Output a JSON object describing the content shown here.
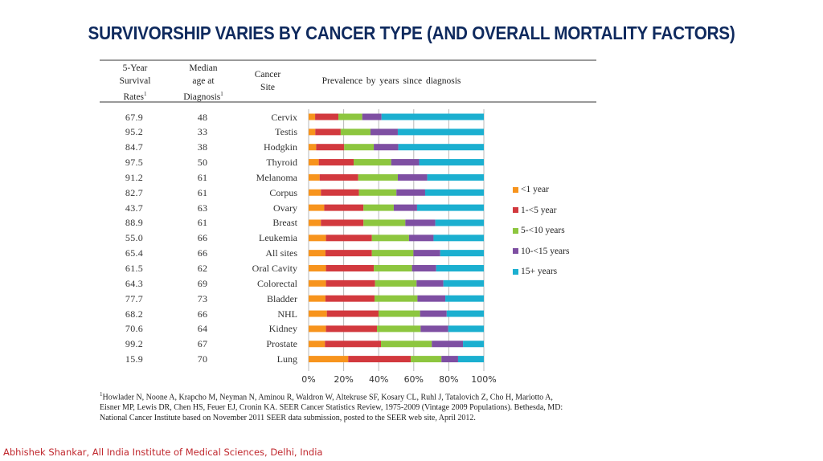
{
  "slide": {
    "title": "SURVIVORSHIP VARIES BY CANCER TYPE (AND OVERALL MORTALITY FACTORS)",
    "credit": "Abhishek Shankar, All India Institute of Medical Sciences, Delhi, India"
  },
  "table": {
    "headers": {
      "survival": [
        "5-Year",
        "Survival",
        "Rates"
      ],
      "survival_sup": "1",
      "median_age": [
        "Median",
        "age at",
        "Diagnosis"
      ],
      "median_age_sup": "1",
      "site": [
        "Cancer",
        "Site"
      ],
      "prevalence": "Prevalence by years since diagnosis"
    }
  },
  "chart_data": {
    "type": "bar",
    "orientation": "horizontal",
    "stacked": "percent",
    "title": "Prevalence by years since diagnosis",
    "categories": [
      "Cervix",
      "Testis",
      "Hodgkin",
      "Thyroid",
      "Melanoma",
      "Corpus",
      "Ovary",
      "Breast",
      "Leukemia",
      "All sites",
      "Oral Cavity",
      "Colorectal",
      "Bladder",
      "NHL",
      "Kidney",
      "Prostate",
      "Lung"
    ],
    "five_year_survival_rates": [
      "67.9",
      "95.2",
      "84.7",
      "97.5",
      "91.2",
      "82.7",
      "43.7",
      "88.9",
      "55.0",
      "65.4",
      "61.5",
      "64.3",
      "77.7",
      "68.2",
      "70.6",
      "99.2",
      "15.9"
    ],
    "median_age_at_diagnosis": [
      "48",
      "33",
      "38",
      "50",
      "61",
      "61",
      "63",
      "61",
      "66",
      "66",
      "62",
      "69",
      "73",
      "66",
      "64",
      "67",
      "70"
    ],
    "series": [
      {
        "name": "<1 year",
        "color": "#F7941D",
        "values": [
          3.7,
          3.8,
          4.3,
          5.8,
          6.3,
          7.0,
          8.9,
          7.0,
          9.9,
          9.6,
          9.9,
          9.9,
          9.6,
          10.4,
          9.9,
          9.3,
          22.6
        ]
      },
      {
        "name": "1-<5 year",
        "color": "#D2393E",
        "values": [
          13.3,
          14.5,
          16.0,
          19.9,
          22.0,
          21.7,
          22.4,
          24.3,
          26.2,
          26.5,
          27.3,
          28.0,
          28.0,
          29.5,
          29.1,
          32.0,
          35.7
        ]
      },
      {
        "name": "5-<10 years",
        "color": "#8DC63F",
        "values": [
          13.6,
          17.0,
          16.9,
          21.4,
          22.6,
          21.4,
          17.3,
          23.9,
          21.2,
          23.7,
          21.8,
          23.7,
          24.5,
          23.7,
          24.9,
          29.0,
          17.5
        ]
      },
      {
        "name": "10-<15 years",
        "color": "#7E4FA2",
        "values": [
          11.0,
          15.6,
          14.0,
          16.0,
          16.8,
          16.4,
          13.3,
          17.1,
          14.0,
          15.3,
          13.8,
          15.3,
          15.9,
          15.2,
          15.8,
          17.8,
          9.5
        ]
      },
      {
        "name": "15+ years",
        "color": "#1BAFD0",
        "values": [
          58.4,
          49.1,
          48.8,
          36.9,
          32.3,
          33.5,
          38.1,
          27.7,
          28.7,
          24.9,
          27.2,
          23.1,
          22.0,
          21.2,
          20.3,
          11.9,
          14.7
        ]
      }
    ],
    "xlabel": "",
    "ylabel": "",
    "xlim": [
      0,
      100
    ],
    "xticks": [
      "0%",
      "20%",
      "40%",
      "60%",
      "80%",
      "100%"
    ],
    "grid": true,
    "legend_position": "right"
  },
  "footnote": {
    "sup": "1",
    "lines": [
      "Howlader N, Noone A, Krapcho M, Neyman N, Aminou R, Waldron W, Altekruse SF, Kosary CL, Ruhl J, Tatalovich Z, Cho H, Mariotto A,",
      "Eisner MP, Lewis DR, Chen HS, Feuer EJ, Cronin KA. SEER Cancer Statistics Review, 1975-2009 (Vintage 2009 Populations). Bethesda, MD:",
      "National Cancer Institute based on November 2011 SEER data submission, posted to the SEER web site, April 2012."
    ]
  }
}
